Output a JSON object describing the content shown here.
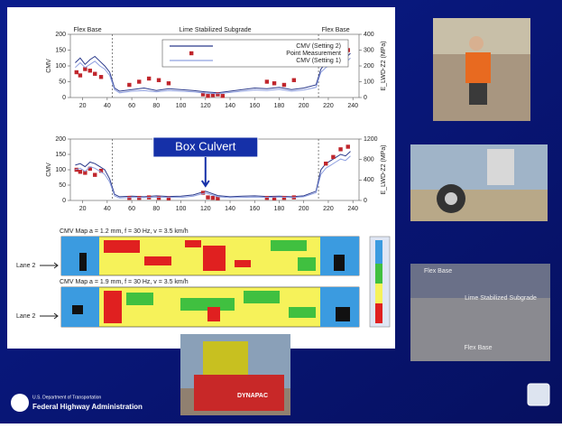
{
  "chart_data": [
    {
      "type": "line",
      "y_label": "CMV",
      "y2_label": "E_LWD-Z2 (MPa)",
      "xlim": [
        10,
        245
      ],
      "xticks": [
        20,
        40,
        60,
        80,
        100,
        120,
        140,
        160,
        180,
        200,
        220,
        240
      ],
      "ylim": [
        0,
        200
      ],
      "yticks": [
        0,
        50,
        100,
        150,
        200
      ],
      "y2lim": [
        0,
        400
      ],
      "y2ticks": [
        0,
        100,
        200,
        300,
        400
      ],
      "dividers": [
        44,
        212
      ],
      "annotations": [
        {
          "text": "Flex Base",
          "x": 24
        },
        {
          "text": "Lime Stabilized Subgrade",
          "x": 128
        },
        {
          "text": "Flex Base",
          "x": 226
        }
      ],
      "series": [
        {
          "name": "CMV (Setting 2)",
          "kind": "line",
          "color": "#2b3a8c",
          "x": [
            14,
            18,
            22,
            26,
            30,
            34,
            38,
            42,
            46,
            50,
            60,
            70,
            80,
            90,
            100,
            110,
            120,
            130,
            140,
            150,
            160,
            170,
            180,
            190,
            200,
            210,
            214,
            218,
            222,
            226,
            230,
            234,
            238
          ],
          "values": [
            110,
            125,
            105,
            120,
            130,
            115,
            100,
            80,
            30,
            20,
            25,
            30,
            22,
            28,
            25,
            22,
            18,
            15,
            20,
            25,
            30,
            28,
            32,
            25,
            30,
            40,
            90,
            110,
            120,
            115,
            130,
            125,
            140
          ]
        },
        {
          "name": "Point Measurement",
          "kind": "scatter",
          "axis": "y2",
          "color": "#c0262c",
          "x": [
            15,
            18,
            22,
            26,
            30,
            35,
            58,
            66,
            74,
            82,
            90,
            118,
            122,
            126,
            130,
            134,
            170,
            176,
            184,
            192,
            218,
            224,
            230,
            236
          ],
          "values": [
            160,
            140,
            180,
            170,
            150,
            130,
            80,
            100,
            120,
            110,
            90,
            20,
            10,
            15,
            20,
            10,
            100,
            90,
            80,
            110,
            230,
            250,
            280,
            300
          ]
        },
        {
          "name": "CMV (Setting 1)",
          "kind": "line",
          "color": "#8fa0e0",
          "x": [
            14,
            18,
            22,
            26,
            30,
            34,
            38,
            42,
            46,
            50,
            60,
            70,
            80,
            90,
            100,
            110,
            120,
            130,
            140,
            150,
            160,
            170,
            180,
            190,
            200,
            210,
            214,
            218,
            222,
            226,
            230,
            234,
            238
          ],
          "values": [
            95,
            110,
            95,
            105,
            115,
            100,
            90,
            70,
            25,
            15,
            20,
            22,
            18,
            22,
            20,
            18,
            14,
            12,
            16,
            20,
            24,
            22,
            26,
            20,
            24,
            32,
            80,
            95,
            105,
            100,
            115,
            110,
            125
          ]
        }
      ]
    },
    {
      "type": "line",
      "y_label": "CMV",
      "y2_label": "E_LWD-Z2 (MPa)",
      "xlim": [
        10,
        245
      ],
      "xticks": [
        20,
        40,
        60,
        80,
        100,
        120,
        140,
        160,
        180,
        200,
        220,
        240
      ],
      "ylim": [
        0,
        200
      ],
      "yticks": [
        0,
        50,
        100,
        150,
        200
      ],
      "y2lim": [
        0,
        1200
      ],
      "y2ticks": [
        0,
        400,
        800,
        1200
      ],
      "dividers": [
        44,
        212
      ],
      "callout": {
        "text": "Box Culvert",
        "x": 120
      },
      "series": [
        {
          "kind": "line",
          "color": "#2b3a8c",
          "x": [
            14,
            18,
            22,
            26,
            30,
            34,
            38,
            42,
            46,
            50,
            60,
            70,
            80,
            90,
            100,
            110,
            120,
            130,
            140,
            150,
            160,
            170,
            180,
            190,
            200,
            210,
            214,
            218,
            222,
            226,
            230,
            234,
            238
          ],
          "values": [
            115,
            120,
            110,
            125,
            120,
            110,
            100,
            70,
            20,
            12,
            14,
            12,
            15,
            13,
            14,
            18,
            30,
            16,
            12,
            14,
            15,
            13,
            14,
            12,
            15,
            30,
            100,
            120,
            130,
            140,
            150,
            145,
            160
          ]
        },
        {
          "kind": "scatter",
          "axis": "y2",
          "color": "#c0262c",
          "x": [
            15,
            18,
            22,
            26,
            30,
            35,
            58,
            66,
            74,
            82,
            90,
            118,
            122,
            126,
            130,
            170,
            176,
            184,
            192,
            218,
            224,
            230,
            236
          ],
          "values": [
            600,
            560,
            540,
            620,
            500,
            580,
            50,
            50,
            60,
            50,
            40,
            150,
            60,
            50,
            40,
            50,
            40,
            50,
            60,
            720,
            850,
            1000,
            1050
          ]
        },
        {
          "kind": "line",
          "color": "#8fa0e0",
          "x": [
            14,
            18,
            22,
            26,
            30,
            34,
            38,
            42,
            46,
            50,
            60,
            70,
            80,
            90,
            100,
            110,
            120,
            130,
            140,
            150,
            160,
            170,
            180,
            190,
            200,
            210,
            214,
            218,
            222,
            226,
            230,
            234,
            238
          ],
          "values": [
            100,
            105,
            95,
            110,
            105,
            95,
            85,
            60,
            15,
            8,
            10,
            9,
            11,
            10,
            10,
            14,
            24,
            12,
            9,
            10,
            11,
            10,
            11,
            9,
            12,
            25,
            85,
            105,
            115,
            125,
            135,
            130,
            145
          ]
        }
      ]
    }
  ],
  "maps": [
    {
      "title": "CMV Map a = 1.2 mm, f = 30 Hz, v = 3.5 km/h",
      "lane": "Lane 2"
    },
    {
      "title": "CMV Map a = 1.9 mm, f = 30 Hz, v = 3.5 km/h",
      "lane": "Lane 2"
    }
  ],
  "photo_text": [
    "Flex Base",
    "Lime Stabilized Subgrade",
    "Flex Base"
  ],
  "roller_text": "DYNAPAC",
  "footer": {
    "department": "U.S. Department of Transportation",
    "agency": "Federal Highway Administration"
  }
}
